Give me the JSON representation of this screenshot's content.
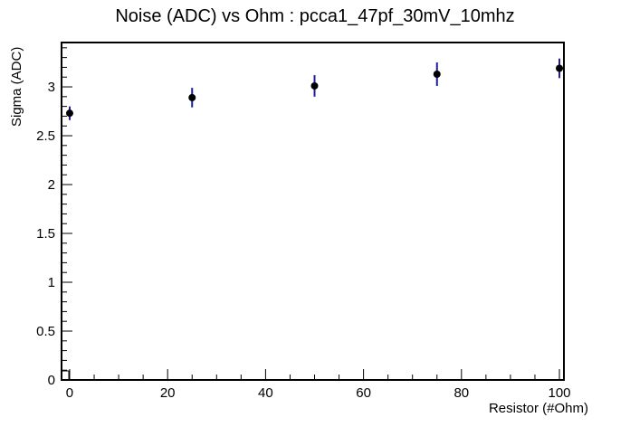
{
  "chart_data": {
    "type": "scatter",
    "title": "Noise (ADC) vs Ohm : pcca1_47pf_30mV_10mhz",
    "xlabel": "Resistor (#Ohm)",
    "ylabel": "Sigma (ADC)",
    "x": [
      0,
      25,
      50,
      75,
      100
    ],
    "y": [
      2.73,
      2.89,
      3.01,
      3.13,
      3.19
    ],
    "yerr": [
      0.07,
      0.1,
      0.11,
      0.12,
      0.1
    ],
    "x_range": [
      -1.66,
      100.92
    ],
    "y_range": [
      0,
      3.454
    ],
    "x_ticks": [
      0,
      20,
      40,
      60,
      80,
      100
    ],
    "x_tick_labels": [
      "0",
      "20",
      "40",
      "60",
      "80",
      "100"
    ],
    "x_minor_step": 5,
    "y_ticks": [
      0,
      0.5,
      1,
      1.5,
      2,
      2.5,
      3
    ],
    "y_tick_labels": [
      "0",
      "0.5",
      "1",
      "1.5",
      "2",
      "2.5",
      "3"
    ],
    "y_minor_step": 0.1,
    "grid": false,
    "legend": "none",
    "background_color": "#ffffff",
    "frame_color": "#000000",
    "marker_color": "#000000",
    "error_bar_color": "#1c1ca0",
    "tick_label_color": "#000000"
  }
}
